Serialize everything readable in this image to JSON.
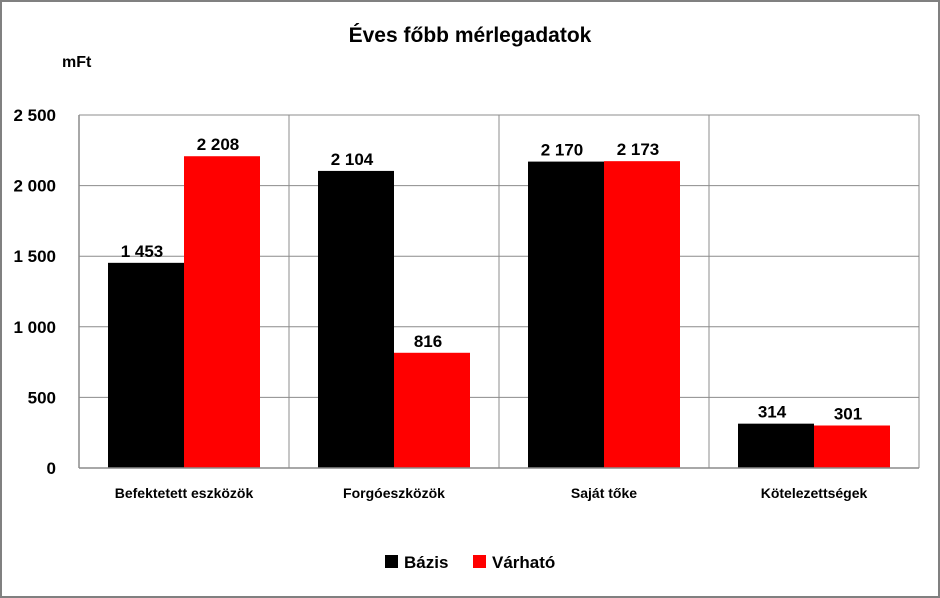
{
  "chart_data": {
    "type": "bar",
    "title": "Éves főbb mérlegadatok",
    "ylabel": "mFt",
    "xlabel": "",
    "categories": [
      "Befektetett eszközök",
      "Forgóeszközök",
      "Saját tőke",
      "Kötelezettségek"
    ],
    "series": [
      {
        "name": "Bázis",
        "color": "#000000",
        "values": [
          1453,
          2104,
          2170,
          314
        ],
        "labels": [
          "1 453",
          "2 104",
          "2 170",
          "314"
        ]
      },
      {
        "name": "Várható",
        "color": "#ff0000",
        "values": [
          2208,
          816,
          2173,
          301
        ],
        "labels": [
          "2 208",
          "816",
          "2 173",
          "301"
        ]
      }
    ],
    "ylim": [
      0,
      2500
    ],
    "yticks": [
      0,
      500,
      1000,
      1500,
      2000,
      2500
    ],
    "ytick_labels": [
      "0",
      "500",
      "1 000",
      "1 500",
      "2 000",
      "2 500"
    ],
    "grid": true,
    "legend_position": "bottom"
  }
}
